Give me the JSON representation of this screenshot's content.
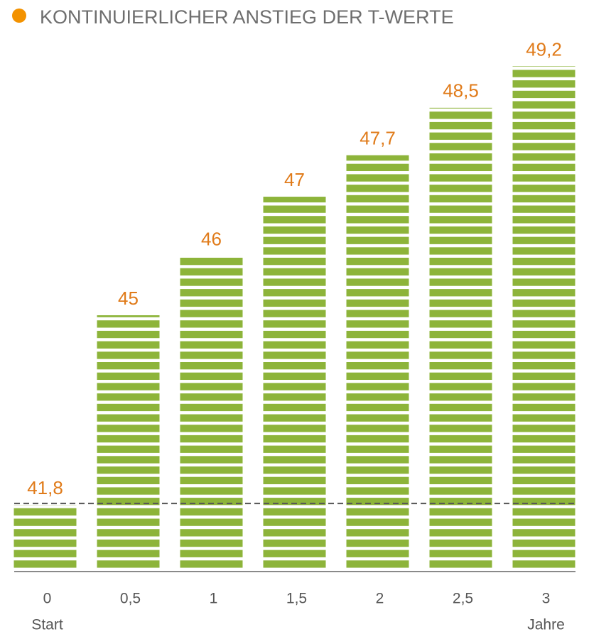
{
  "chart_data": {
    "type": "bar",
    "title": "KONTINUIERLICHER ANSTIEG DER T-WERTE",
    "categories": [
      "0",
      "0,5",
      "1",
      "1,5",
      "2",
      "2,5",
      "3"
    ],
    "x_sublabels": [
      "Start",
      null,
      null,
      null,
      null,
      null,
      "Jahre"
    ],
    "values": [
      41.8,
      45,
      46,
      47,
      47.7,
      48.5,
      49.2
    ],
    "value_labels": [
      "41,8",
      "45",
      "46",
      "47",
      "47,7",
      "48,5",
      "49,2"
    ],
    "color": "#8db43a",
    "label_color": "#e07b1a",
    "ylim": [
      40.7,
      49.6
    ],
    "reference_line": true
  }
}
